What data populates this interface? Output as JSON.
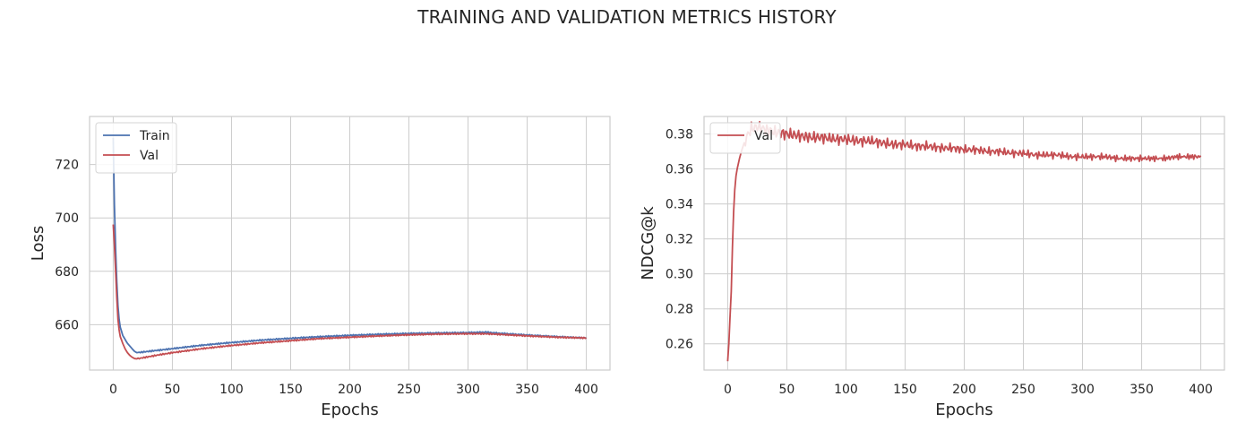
{
  "figure": {
    "suptitle": "TRAINING AND VALIDATION METRICS HISTORY"
  },
  "chart_data": [
    {
      "type": "line",
      "title": "",
      "xlabel": "Epochs",
      "ylabel": "Loss",
      "xlim": [
        -20,
        420
      ],
      "ylim": [
        643,
        738
      ],
      "xticks": [
        0,
        50,
        100,
        150,
        200,
        250,
        300,
        350,
        400
      ],
      "yticks": [
        660,
        680,
        700,
        720
      ],
      "grid": true,
      "legend_position": "top-left",
      "colors": {
        "Train": "#4c72b0",
        "Val": "#c44e52"
      },
      "series": [
        {
          "name": "Train",
          "x": [
            0,
            1,
            2,
            3,
            4,
            5,
            6,
            8,
            10,
            12,
            14,
            16,
            18,
            20,
            30,
            40,
            50,
            75,
            100,
            125,
            150,
            175,
            200,
            225,
            250,
            275,
            300,
            315,
            325,
            350,
            375,
            400
          ],
          "y": [
            730,
            705,
            688,
            676,
            667,
            662,
            659,
            656,
            654.5,
            653,
            652,
            651,
            650,
            649.5,
            650,
            650.5,
            651,
            652.3,
            653.3,
            654.2,
            654.9,
            655.5,
            656,
            656.4,
            656.7,
            656.9,
            657,
            657.2,
            656.8,
            656.1,
            655.5,
            655
          ]
        },
        {
          "name": "Val",
          "x": [
            0,
            1,
            2,
            3,
            4,
            5,
            6,
            8,
            10,
            12,
            14,
            16,
            18,
            20,
            30,
            40,
            50,
            75,
            100,
            125,
            150,
            175,
            200,
            225,
            250,
            275,
            300,
            315,
            325,
            350,
            375,
            400
          ],
          "y": [
            697.5,
            690,
            680,
            670,
            662,
            658,
            655.5,
            653,
            651,
            649.5,
            648.5,
            647.8,
            647.3,
            647.2,
            648,
            648.8,
            649.5,
            651,
            652.2,
            653.2,
            654,
            654.8,
            655.3,
            655.8,
            656.2,
            656.5,
            656.6,
            656.6,
            656.4,
            655.8,
            655.3,
            655
          ]
        }
      ]
    },
    {
      "type": "line",
      "title": "",
      "xlabel": "Epochs",
      "ylabel": "NDCG@k",
      "xlim": [
        -20,
        420
      ],
      "ylim": [
        0.245,
        0.39
      ],
      "xticks": [
        0,
        50,
        100,
        150,
        200,
        250,
        300,
        350,
        400
      ],
      "yticks": [
        0.26,
        0.28,
        0.3,
        0.32,
        0.34,
        0.36,
        0.38
      ],
      "grid": true,
      "legend_position": "top-left",
      "colors": {
        "Val": "#c44e52"
      },
      "series": [
        {
          "name": "Val",
          "x": [
            0,
            1,
            2,
            3,
            4,
            5,
            6,
            7,
            8,
            10,
            12,
            14,
            16,
            18,
            20,
            25,
            30,
            40,
            50,
            60,
            70,
            80,
            90,
            100,
            110,
            120,
            130,
            140,
            150,
            160,
            170,
            180,
            190,
            200,
            210,
            220,
            230,
            240,
            250,
            260,
            270,
            280,
            290,
            300,
            310,
            320,
            330,
            340,
            350,
            360,
            370,
            380,
            390,
            400
          ],
          "y": [
            0.25,
            0.26,
            0.275,
            0.29,
            0.315,
            0.335,
            0.348,
            0.356,
            0.36,
            0.366,
            0.371,
            0.375,
            0.378,
            0.381,
            0.383,
            0.384,
            0.383,
            0.381,
            0.38,
            0.379,
            0.378,
            0.378,
            0.377,
            0.377,
            0.376,
            0.376,
            0.375,
            0.374,
            0.374,
            0.373,
            0.373,
            0.372,
            0.372,
            0.371,
            0.371,
            0.37,
            0.37,
            0.369,
            0.369,
            0.368,
            0.368,
            0.368,
            0.367,
            0.367,
            0.367,
            0.367,
            0.366,
            0.366,
            0.366,
            0.366,
            0.366,
            0.367,
            0.367,
            0.367
          ]
        }
      ]
    }
  ]
}
